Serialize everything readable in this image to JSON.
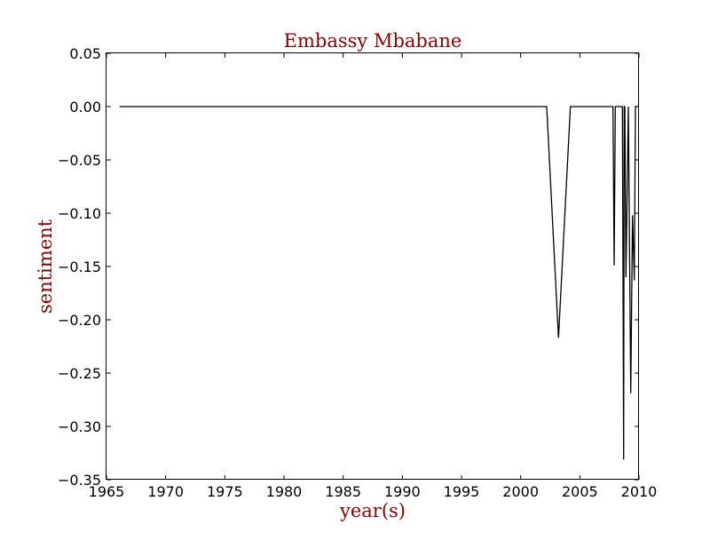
{
  "chart_data": {
    "type": "line",
    "title": "Embassy Mbabane",
    "xlabel": "year(s)",
    "ylabel": "sentiment",
    "xlim": [
      1965,
      2010
    ],
    "ylim": [
      -0.35,
      0.05
    ],
    "x_ticks": [
      "1965",
      "1970",
      "1975",
      "1980",
      "1985",
      "1990",
      "1995",
      "2000",
      "2005",
      "2010"
    ],
    "y_ticks": [
      "0.05",
      "0.00",
      "−0.05",
      "−0.10",
      "−0.15",
      "−0.20",
      "−0.25",
      "−0.30",
      "−0.35"
    ],
    "y_tick_values": [
      0.05,
      0.0,
      -0.05,
      -0.1,
      -0.15,
      -0.2,
      -0.25,
      -0.3,
      -0.35
    ],
    "grid": false,
    "series": [
      {
        "color": "#000000",
        "x": [
          1966.1,
          2002.2,
          2003.2,
          2004.2,
          2007.8,
          2007.9,
          2008.0,
          2008.6,
          2008.7,
          2008.75,
          2008.8,
          2008.9,
          2009.1,
          2009.3,
          2009.45,
          2009.6,
          2009.7,
          2009.8,
          2009.9
        ],
        "y": [
          0.0,
          0.0,
          -0.217,
          0.0,
          0.0,
          -0.149,
          0.0,
          0.0,
          -0.331,
          0.0,
          0.0,
          -0.16,
          0.0,
          -0.269,
          -0.102,
          -0.163,
          0.0,
          0.0,
          0.0
        ]
      }
    ]
  }
}
